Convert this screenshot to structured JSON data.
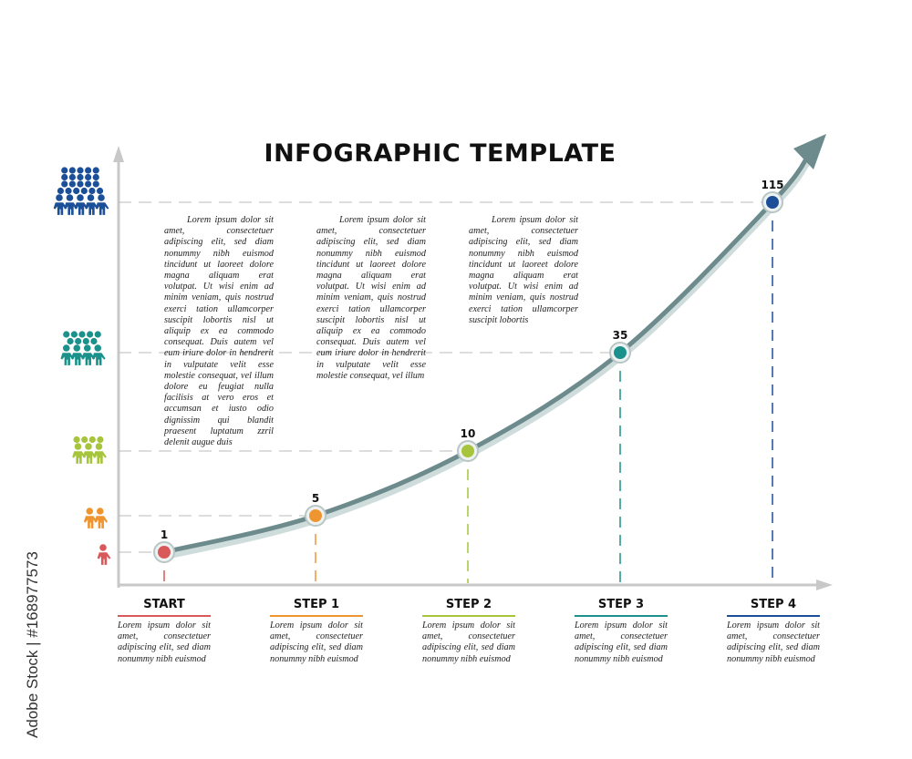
{
  "title": "INFOGRAPHIC TEMPLATE",
  "watermark": "Adobe Stock | #168977573",
  "colors": {
    "start": "#d9595a",
    "step1": "#ef9530",
    "step2": "#a6c53c",
    "step3": "#1a918a",
    "step4": "#1b4f97",
    "curve": "#6d8b8c",
    "axis": "#c8c8c8"
  },
  "paragraphs": [
    "Lorem ipsum dolor sit amet, consectetuer adipiscing elit, sed diam nonummy nibh euismod tincidunt ut laoreet dolore magna aliquam erat volutpat. Ut wisi enim ad minim veniam, quis nostrud exerci tation ullamcorper suscipit lobortis nisl ut aliquip ex ea commodo consequat. Duis autem vel eum iriure dolor in hendrerit in vulputate velit esse molestie consequat, vel illum dolore eu feugiat nulla facilisis at vero eros et accumsan et iusto odio dignissim qui blandit praesent luptatum zzril delenit augue duis",
    "Lorem ipsum dolor sit amet, consectetuer adipiscing elit, sed diam nonummy nibh euismod tincidunt ut laoreet dolore magna aliquam erat volutpat. Ut wisi enim ad minim veniam, quis nostrud exerci tation ullamcorper suscipit lobortis nisl ut aliquip ex ea commodo consequat. Duis autem vel eum iriure dolor in hendrerit in vulputate velit esse molestie consequat, vel illum",
    "Lorem ipsum dolor sit amet, consectetuer adipiscing elit, sed diam nonummy nibh euismod tincidunt ut laoreet dolore magna aliquam erat volutpat. Ut wisi enim ad minim veniam, quis nostrud exerci tation ullamcorper suscipit lobortis"
  ],
  "chart_data": {
    "type": "line",
    "categories": [
      "START",
      "STEP 1",
      "STEP 2",
      "STEP 3",
      "STEP 4"
    ],
    "values": [
      1,
      5,
      10,
      35,
      115
    ],
    "data_labels": [
      "1",
      "5",
      "10",
      "35",
      "115"
    ],
    "y_icons": [
      "one-person-icon",
      "two-people-icon",
      "small-group-icon",
      "group-icon",
      "crowd-icon"
    ],
    "grid": "dashed guide lines",
    "arrow_end": true
  },
  "steps": [
    {
      "title": "START",
      "text": "Lorem ipsum dolor sit amet, consectetuer adipiscing elit, sed diam nonummy nibh euismod"
    },
    {
      "title": "STEP 1",
      "text": "Lorem ipsum dolor sit amet, consectetuer adipiscing elit, sed diam nonummy nibh euismod"
    },
    {
      "title": "STEP 2",
      "text": "Lorem ipsum dolor sit amet, consectetuer adipiscing elit, sed diam nonummy nibh euismod"
    },
    {
      "title": "STEP 3",
      "text": "Lorem ipsum dolor sit amet, consectetuer adipiscing elit, sed diam nonummy nibh euismod"
    },
    {
      "title": "STEP 4",
      "text": "Lorem ipsum dolor sit amet, consectetuer adipiscing elit, sed diam nonummy nibh euismod"
    }
  ]
}
